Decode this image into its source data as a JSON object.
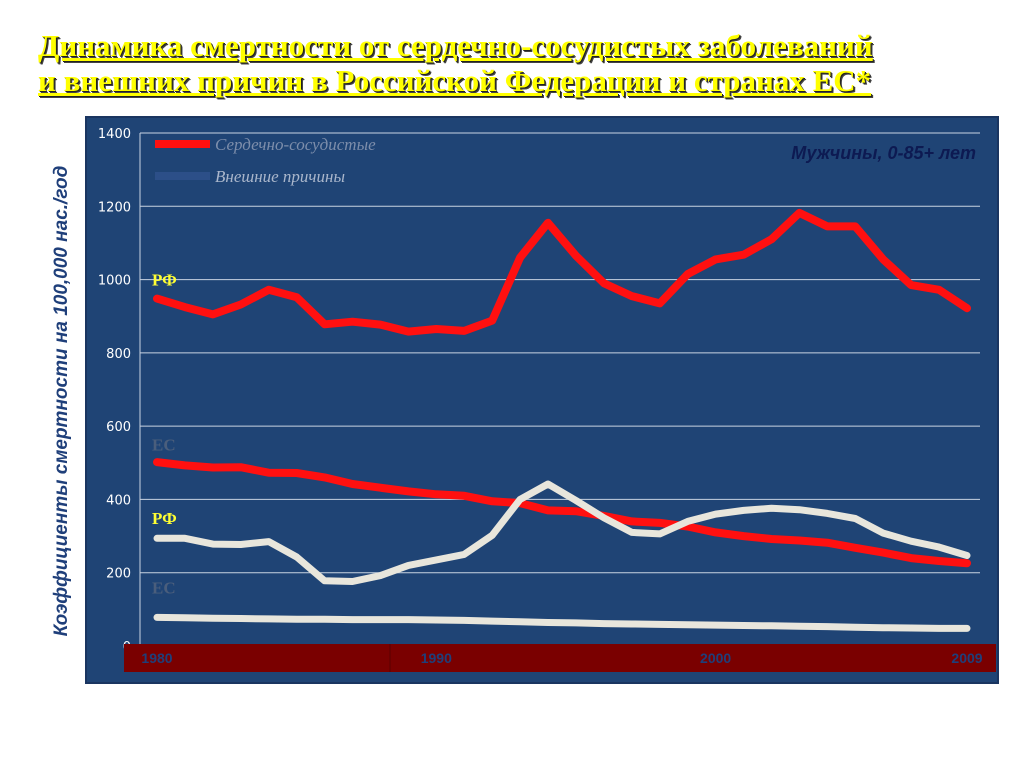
{
  "title_line1": "Динамика смертности от сердечно-сосудистых заболеваний",
  "title_line2": "и внешних причин в Российской Федерации и странах ЕС*",
  "colors": {
    "plot_bg": "#1f4475",
    "border": "#1a3560",
    "grid": "#c9d3e2",
    "cardio": "#ff1010",
    "external": "#e8e6dc",
    "axis_band": "#7a0000",
    "title": "#ffff00",
    "label_rf": "#ffff33",
    "label_ec": "#4a5e7c",
    "legend_external_line": "#2c4f88"
  },
  "chart_data": {
    "type": "line",
    "title": "Динамика смертности от сердечно-сосудистых заболеваний и внешних причин в Российской Федерации и странах ЕС*",
    "subtitle": "Мужчины, 0-85+ лет",
    "ylabel": "Коэффициенты смертности на 100,000 нас./год",
    "xlabel": "",
    "ylim": [
      0,
      1400
    ],
    "yticks": [
      0,
      200,
      400,
      600,
      800,
      1000,
      1200,
      1400
    ],
    "xlim": [
      1980,
      2009
    ],
    "xticks": [
      1980,
      1990,
      2000,
      2009
    ],
    "grid": true,
    "legend_position": "top-left",
    "legend": [
      {
        "label": "Сердечно-сосудистые",
        "color": "#ff1010"
      },
      {
        "label": "Внешние причины",
        "color": "#2c4f88"
      }
    ],
    "x": [
      1980,
      1981,
      1982,
      1983,
      1984,
      1985,
      1986,
      1987,
      1988,
      1989,
      1990,
      1991,
      1992,
      1993,
      1994,
      1995,
      1996,
      1997,
      1998,
      1999,
      2000,
      2001,
      2002,
      2003,
      2004,
      2005,
      2006,
      2007,
      2008,
      2009
    ],
    "series": [
      {
        "group": "cardio",
        "region": "РФ",
        "values": [
          948,
          925,
          905,
          932,
          972,
          952,
          878,
          885,
          877,
          858,
          865,
          860,
          888,
          1060,
          1155,
          1065,
          990,
          955,
          935,
          1015,
          1055,
          1068,
          1110,
          1182,
          1145,
          1145,
          1055,
          985,
          972,
          922
        ]
      },
      {
        "group": "cardio",
        "region": "ЕС",
        "values": [
          502,
          493,
          487,
          488,
          473,
          472,
          460,
          442,
          432,
          422,
          414,
          410,
          395,
          390,
          370,
          368,
          355,
          340,
          336,
          326,
          310,
          300,
          292,
          288,
          282,
          268,
          255,
          240,
          232,
          226
        ]
      },
      {
        "group": "external",
        "region": "РФ",
        "values": [
          294,
          294,
          278,
          277,
          285,
          243,
          178,
          176,
          192,
          220,
          235,
          250,
          302,
          400,
          442,
          397,
          350,
          310,
          306,
          340,
          360,
          370,
          376,
          372,
          362,
          348,
          308,
          286,
          270,
          247
        ]
      },
      {
        "group": "external",
        "region": "ЕС",
        "values": [
          78,
          77,
          76,
          75,
          74,
          73,
          73,
          72,
          72,
          72,
          71,
          70,
          68,
          66,
          64,
          63,
          61,
          60,
          59,
          58,
          57,
          56,
          55,
          54,
          53,
          51,
          50,
          49,
          48,
          48
        ]
      }
    ],
    "annotations": [
      {
        "text": "РФ",
        "color_key": "label_rf",
        "x": 1980,
        "y": 1000
      },
      {
        "text": "ЕС",
        "color_key": "label_ec",
        "x": 1980,
        "y": 550
      },
      {
        "text": "РФ",
        "color_key": "label_rf",
        "x": 1980,
        "y": 350
      },
      {
        "text": "ЕС",
        "color_key": "label_ec",
        "x": 1980,
        "y": 160
      }
    ]
  }
}
